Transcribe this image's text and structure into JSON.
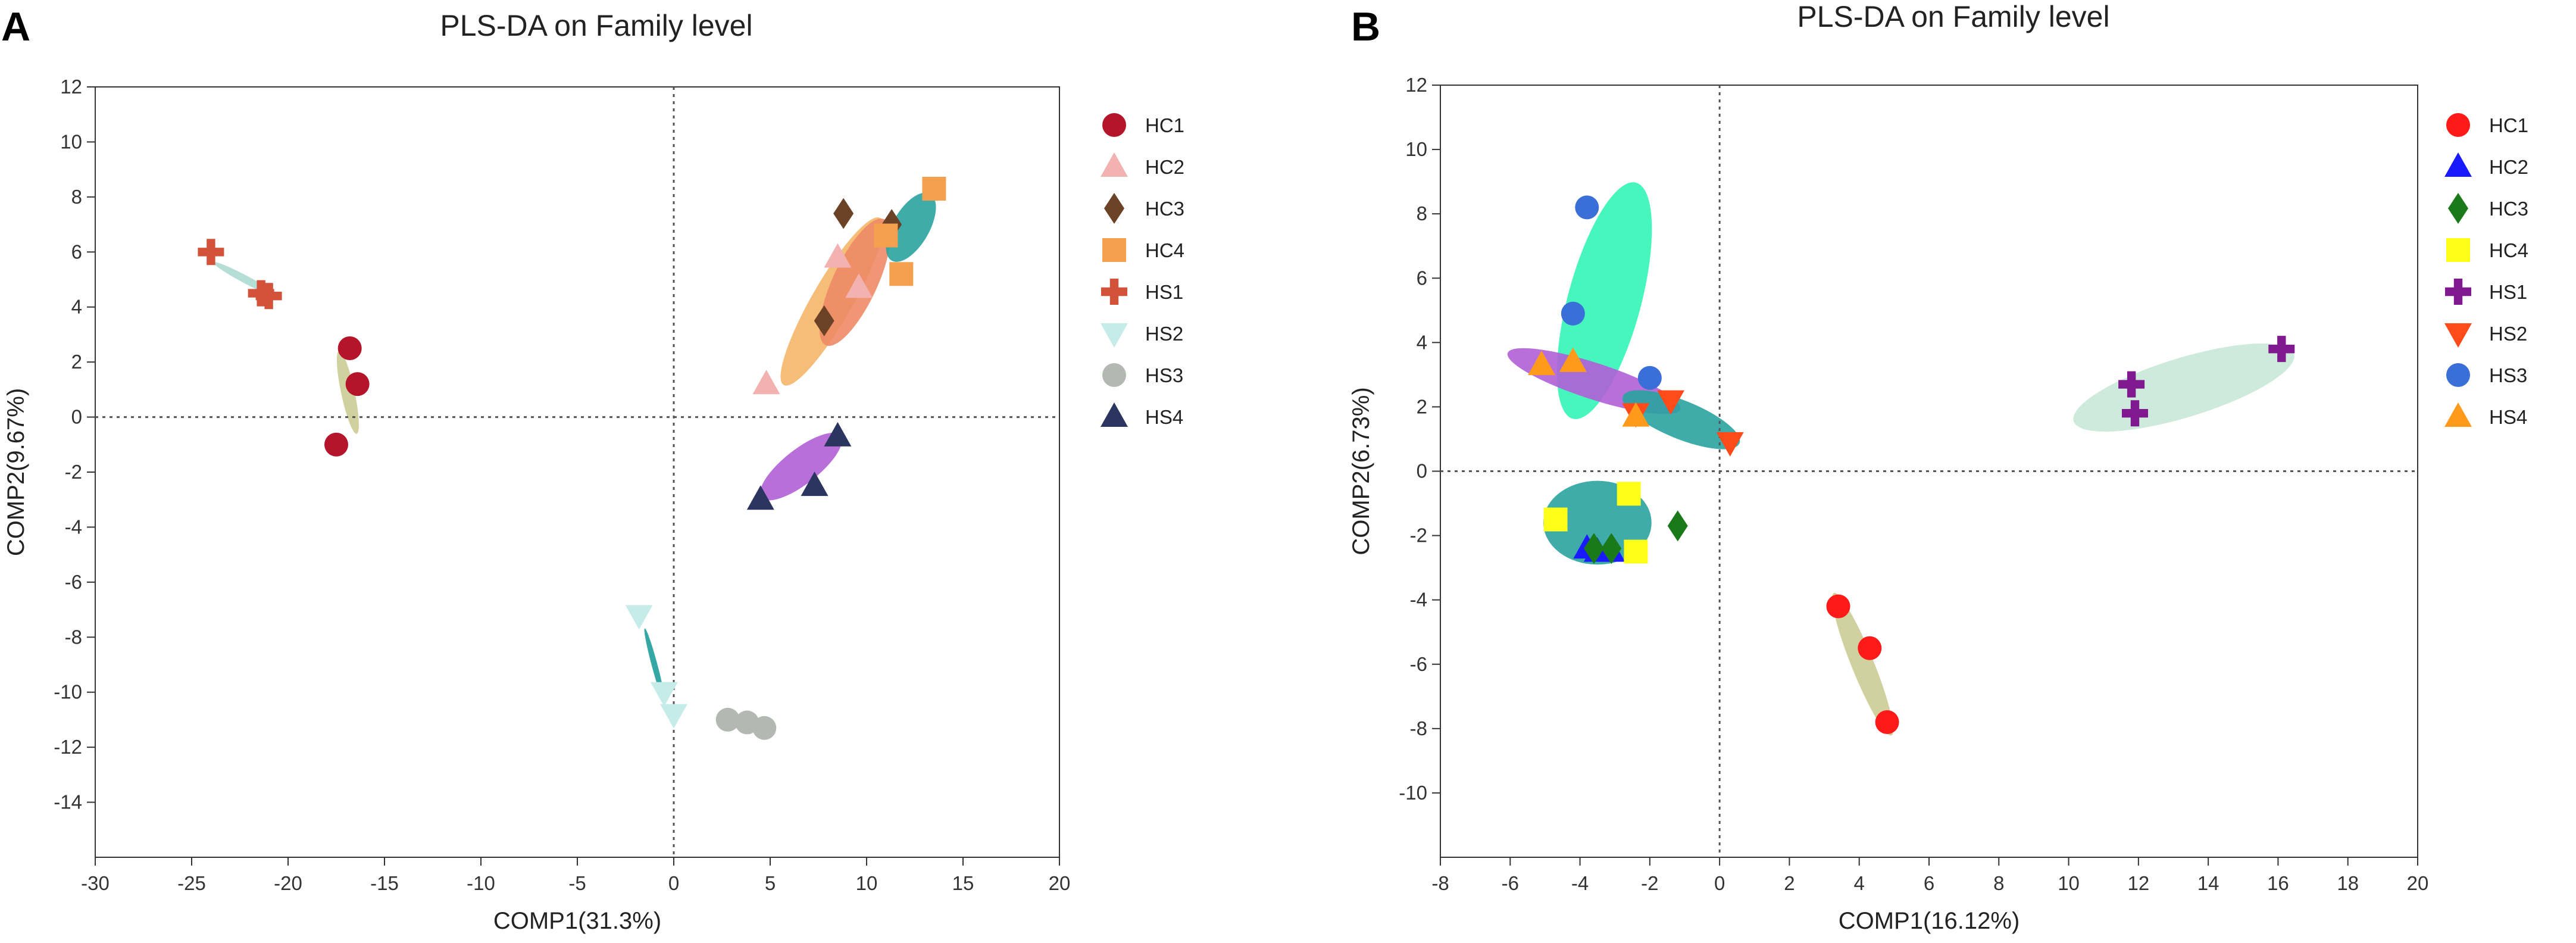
{
  "chart_data": [
    {
      "type": "scatter",
      "panel": "A",
      "title": "PLS-DA on Family level",
      "xlabel": "COMP1(31.3%)",
      "ylabel": "COMP2(9.67%)",
      "xlim": [
        -30,
        20
      ],
      "ylim": [
        -16,
        12
      ],
      "xticks": [
        -30,
        -25,
        -20,
        -15,
        -10,
        -5,
        0,
        5,
        10,
        15,
        20
      ],
      "yticks": [
        -14,
        -12,
        -10,
        -8,
        -6,
        -4,
        -2,
        0,
        2,
        4,
        6,
        8,
        10,
        12
      ],
      "reference_lines": {
        "x": 0,
        "y": 0,
        "style": "dotted"
      },
      "legend_position": "right",
      "series": [
        {
          "name": "HC1",
          "marker": "circle",
          "color": "#b5152b",
          "ellipse_color": "#c9c98f",
          "points": [
            [
              -16.8,
              2.5
            ],
            [
              -16.4,
              1.2
            ],
            [
              -17.5,
              -1.0
            ]
          ]
        },
        {
          "name": "HC2",
          "marker": "triangle-up",
          "color": "#f2b3b0",
          "ellipse_color": "#ee8966",
          "points": [
            [
              4.8,
              1.2
            ],
            [
              8.5,
              5.8
            ],
            [
              9.6,
              4.7
            ]
          ]
        },
        {
          "name": "HC3",
          "marker": "diamond",
          "color": "#6b4226",
          "ellipse_color": "#ee8966",
          "points": [
            [
              7.8,
              3.5
            ],
            [
              8.8,
              7.4
            ],
            [
              11.3,
              7.0
            ]
          ]
        },
        {
          "name": "HC4",
          "marker": "square",
          "color": "#f5a04f",
          "ellipse_color": "#f5b160",
          "points": [
            [
              11.0,
              6.6
            ],
            [
              11.8,
              5.2
            ],
            [
              13.5,
              8.3
            ]
          ]
        },
        {
          "name": "HS1",
          "marker": "cross",
          "color": "#d2533a",
          "ellipse_color": "#a8d8cf",
          "points": [
            [
              -24.0,
              6.0
            ],
            [
              -21.4,
              4.5
            ],
            [
              -21.0,
              4.4
            ]
          ]
        },
        {
          "name": "HS2",
          "marker": "triangle-down",
          "color": "#c6ecea",
          "ellipse_color": "#2aa3a0",
          "points": [
            [
              -1.8,
              -7.2
            ],
            [
              -0.5,
              -10.0
            ],
            [
              0.0,
              -10.8
            ]
          ]
        },
        {
          "name": "HS3",
          "marker": "circle",
          "color": "#b3b8b3",
          "ellipse_color": "#bfc4bf",
          "points": [
            [
              2.8,
              -11.0
            ],
            [
              3.8,
              -11.1
            ],
            [
              4.7,
              -11.3
            ]
          ]
        },
        {
          "name": "HS4",
          "marker": "triangle-up",
          "color": "#2b3560",
          "ellipse_color": "#b05fd6",
          "points": [
            [
              4.5,
              -3.0
            ],
            [
              7.3,
              -2.5
            ],
            [
              8.5,
              -0.7
            ]
          ]
        }
      ],
      "ellipses": [
        {
          "group": "HC1",
          "center": [
            -16.9,
            0.9
          ],
          "rx": 2.2,
          "ry": 0.35,
          "angle": -78,
          "color": "#c9c98f",
          "opacity": 0.85
        },
        {
          "group": "HS1",
          "center": [
            -22.2,
            5.0
          ],
          "rx": 1.9,
          "ry": 0.2,
          "angle": -28,
          "color": "#a8d8cf",
          "opacity": 0.85
        },
        {
          "group": "HC4",
          "center": [
            8.2,
            4.2
          ],
          "rx": 5.0,
          "ry": 1.05,
          "angle": 60,
          "color": "#f5b160",
          "opacity": 0.85
        },
        {
          "group": "HC2",
          "center": [
            9.4,
            4.9
          ],
          "rx": 3.6,
          "ry": 1.15,
          "angle": 65,
          "color": "#ee8966",
          "opacity": 0.9
        },
        {
          "group": "HC3",
          "center": [
            12.3,
            6.9
          ],
          "rx": 2.0,
          "ry": 0.95,
          "angle": 60,
          "color": "#2aa3a0",
          "opacity": 0.9
        },
        {
          "group": "HS4",
          "center": [
            6.6,
            -1.8
          ],
          "rx": 2.6,
          "ry": 0.9,
          "angle": 38,
          "color": "#b05fd6",
          "opacity": 0.9
        },
        {
          "group": "HS2",
          "center": [
            -1.0,
            -9.0
          ],
          "rx": 1.95,
          "ry": 0.15,
          "angle": -75,
          "color": "#2aa3a0",
          "opacity": 0.95
        },
        {
          "group": "HS3",
          "center": [
            3.8,
            -11.15
          ],
          "rx": 1.1,
          "ry": 0.12,
          "angle": -5,
          "color": "#bfc4bf",
          "opacity": 0.8
        }
      ]
    },
    {
      "type": "scatter",
      "panel": "B",
      "title": "PLS-DA on Family level",
      "xlabel": "COMP1(16.12%)",
      "ylabel": "COMP2(6.73%)",
      "xlim": [
        -8,
        20
      ],
      "ylim": [
        -12,
        12
      ],
      "xticks": [
        -8,
        -6,
        -4,
        -2,
        0,
        2,
        4,
        6,
        8,
        10,
        12,
        14,
        16,
        18,
        20
      ],
      "yticks": [
        -10,
        -8,
        -6,
        -4,
        -2,
        0,
        2,
        4,
        6,
        8,
        10,
        12
      ],
      "reference_lines": {
        "x": 0,
        "y": 0,
        "style": "dotted"
      },
      "legend_position": "right",
      "series": [
        {
          "name": "HC1",
          "marker": "circle",
          "color": "#ff1a1a",
          "ellipse_color": "#c9c98f",
          "points": [
            [
              3.4,
              -4.2
            ],
            [
              4.3,
              -5.5
            ],
            [
              4.8,
              -7.8
            ]
          ]
        },
        {
          "name": "HC2",
          "marker": "triangle-up",
          "color": "#1a1aff",
          "ellipse_color": "#2aa3a0",
          "points": [
            [
              -3.8,
              -2.4
            ],
            [
              -3.5,
              -2.5
            ],
            [
              -3.1,
              -2.5
            ]
          ]
        },
        {
          "name": "HC3",
          "marker": "diamond",
          "color": "#1a7a1a",
          "ellipse_color": "#2aa3a0",
          "points": [
            [
              -3.6,
              -2.4
            ],
            [
              -3.1,
              -2.4
            ],
            [
              -1.2,
              -1.7
            ]
          ]
        },
        {
          "name": "HC4",
          "marker": "square",
          "color": "#ffff1a",
          "ellipse_color": "#2aa3a0",
          "points": [
            [
              -4.7,
              -1.5
            ],
            [
              -2.6,
              -0.7
            ],
            [
              -2.4,
              -2.5
            ]
          ]
        },
        {
          "name": "HS1",
          "marker": "cross",
          "color": "#80198f",
          "ellipse_color": "#c8e8d8",
          "points": [
            [
              11.8,
              2.7
            ],
            [
              11.9,
              1.8
            ],
            [
              16.1,
              3.8
            ]
          ]
        },
        {
          "name": "HS2",
          "marker": "triangle-down",
          "color": "#ff4a1a",
          "ellipse_color": "#2aa3a0",
          "points": [
            [
              -2.4,
              1.8
            ],
            [
              -1.4,
              2.2
            ],
            [
              0.3,
              0.9
            ]
          ]
        },
        {
          "name": "HS3",
          "marker": "circle",
          "color": "#3a6fd8",
          "ellipse_color": "#33f5b5",
          "points": [
            [
              -3.8,
              8.2
            ],
            [
              -4.2,
              4.9
            ],
            [
              -2.0,
              2.9
            ]
          ]
        },
        {
          "name": "HS4",
          "marker": "triangle-up",
          "color": "#ff9a1a",
          "ellipse_color": "#b05fd6",
          "points": [
            [
              -5.1,
              3.3
            ],
            [
              -4.2,
              3.4
            ],
            [
              -2.4,
              1.7
            ]
          ]
        }
      ],
      "ellipses": [
        {
          "group": "HS3",
          "center": [
            -3.3,
            5.3
          ],
          "rx": 3.5,
          "ry": 1.05,
          "angle": 75,
          "color": "#33f5b5",
          "opacity": 0.9
        },
        {
          "group": "HS4",
          "center": [
            -3.6,
            2.8
          ],
          "rx": 2.6,
          "ry": 0.52,
          "angle": -18,
          "color": "#b05fd6",
          "opacity": 0.9
        },
        {
          "group": "HS2",
          "center": [
            -1.1,
            1.6
          ],
          "rx": 1.8,
          "ry": 0.55,
          "angle": -22,
          "color": "#2aa3a0",
          "opacity": 0.9
        },
        {
          "group": "HC2",
          "center": [
            -3.5,
            -1.6
          ],
          "rx": 1.55,
          "ry": 1.2,
          "angle": 0,
          "color": "#2aa3a0",
          "opacity": 0.9
        },
        {
          "group": "HC1",
          "center": [
            4.1,
            -6.0
          ],
          "rx": 2.2,
          "ry": 0.32,
          "angle": -68,
          "color": "#c9c98f",
          "opacity": 0.85
        },
        {
          "group": "HS1",
          "center": [
            13.3,
            2.6
          ],
          "rx": 3.3,
          "ry": 0.85,
          "angle": 17,
          "color": "#c8e8d8",
          "opacity": 0.9
        }
      ]
    }
  ]
}
